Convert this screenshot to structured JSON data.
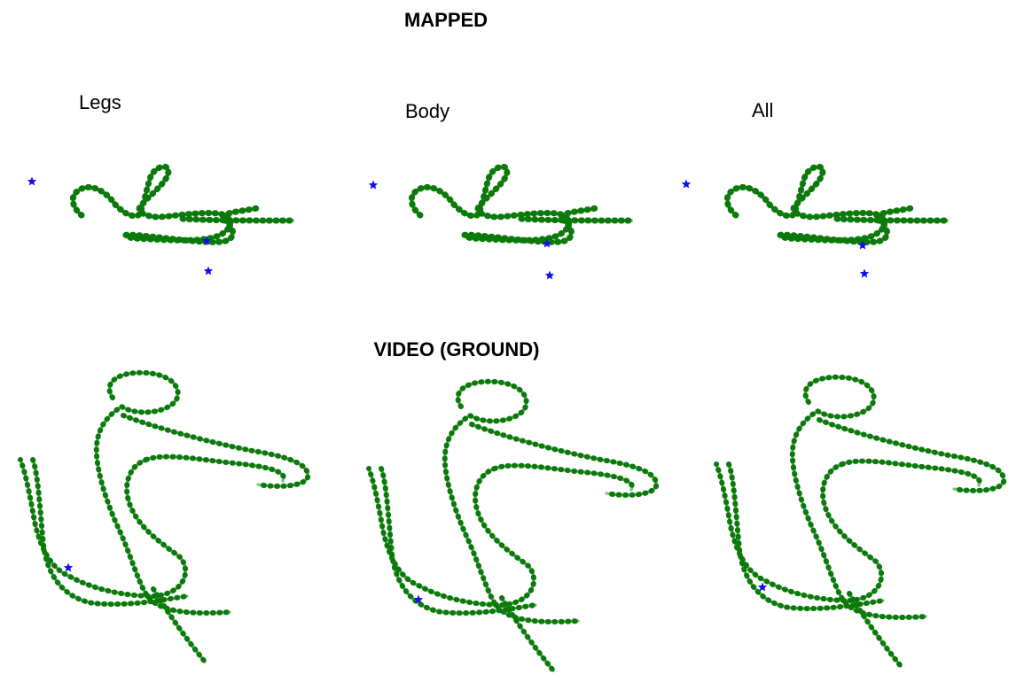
{
  "headings": {
    "top": "MAPPED",
    "bottom": "VIDEO (GROUND)"
  },
  "panels": [
    {
      "label": "Legs"
    },
    {
      "label": "Body"
    },
    {
      "label": "All"
    }
  ],
  "colors": {
    "trace": "#0b7a0b",
    "marker": "#1010ee"
  }
}
